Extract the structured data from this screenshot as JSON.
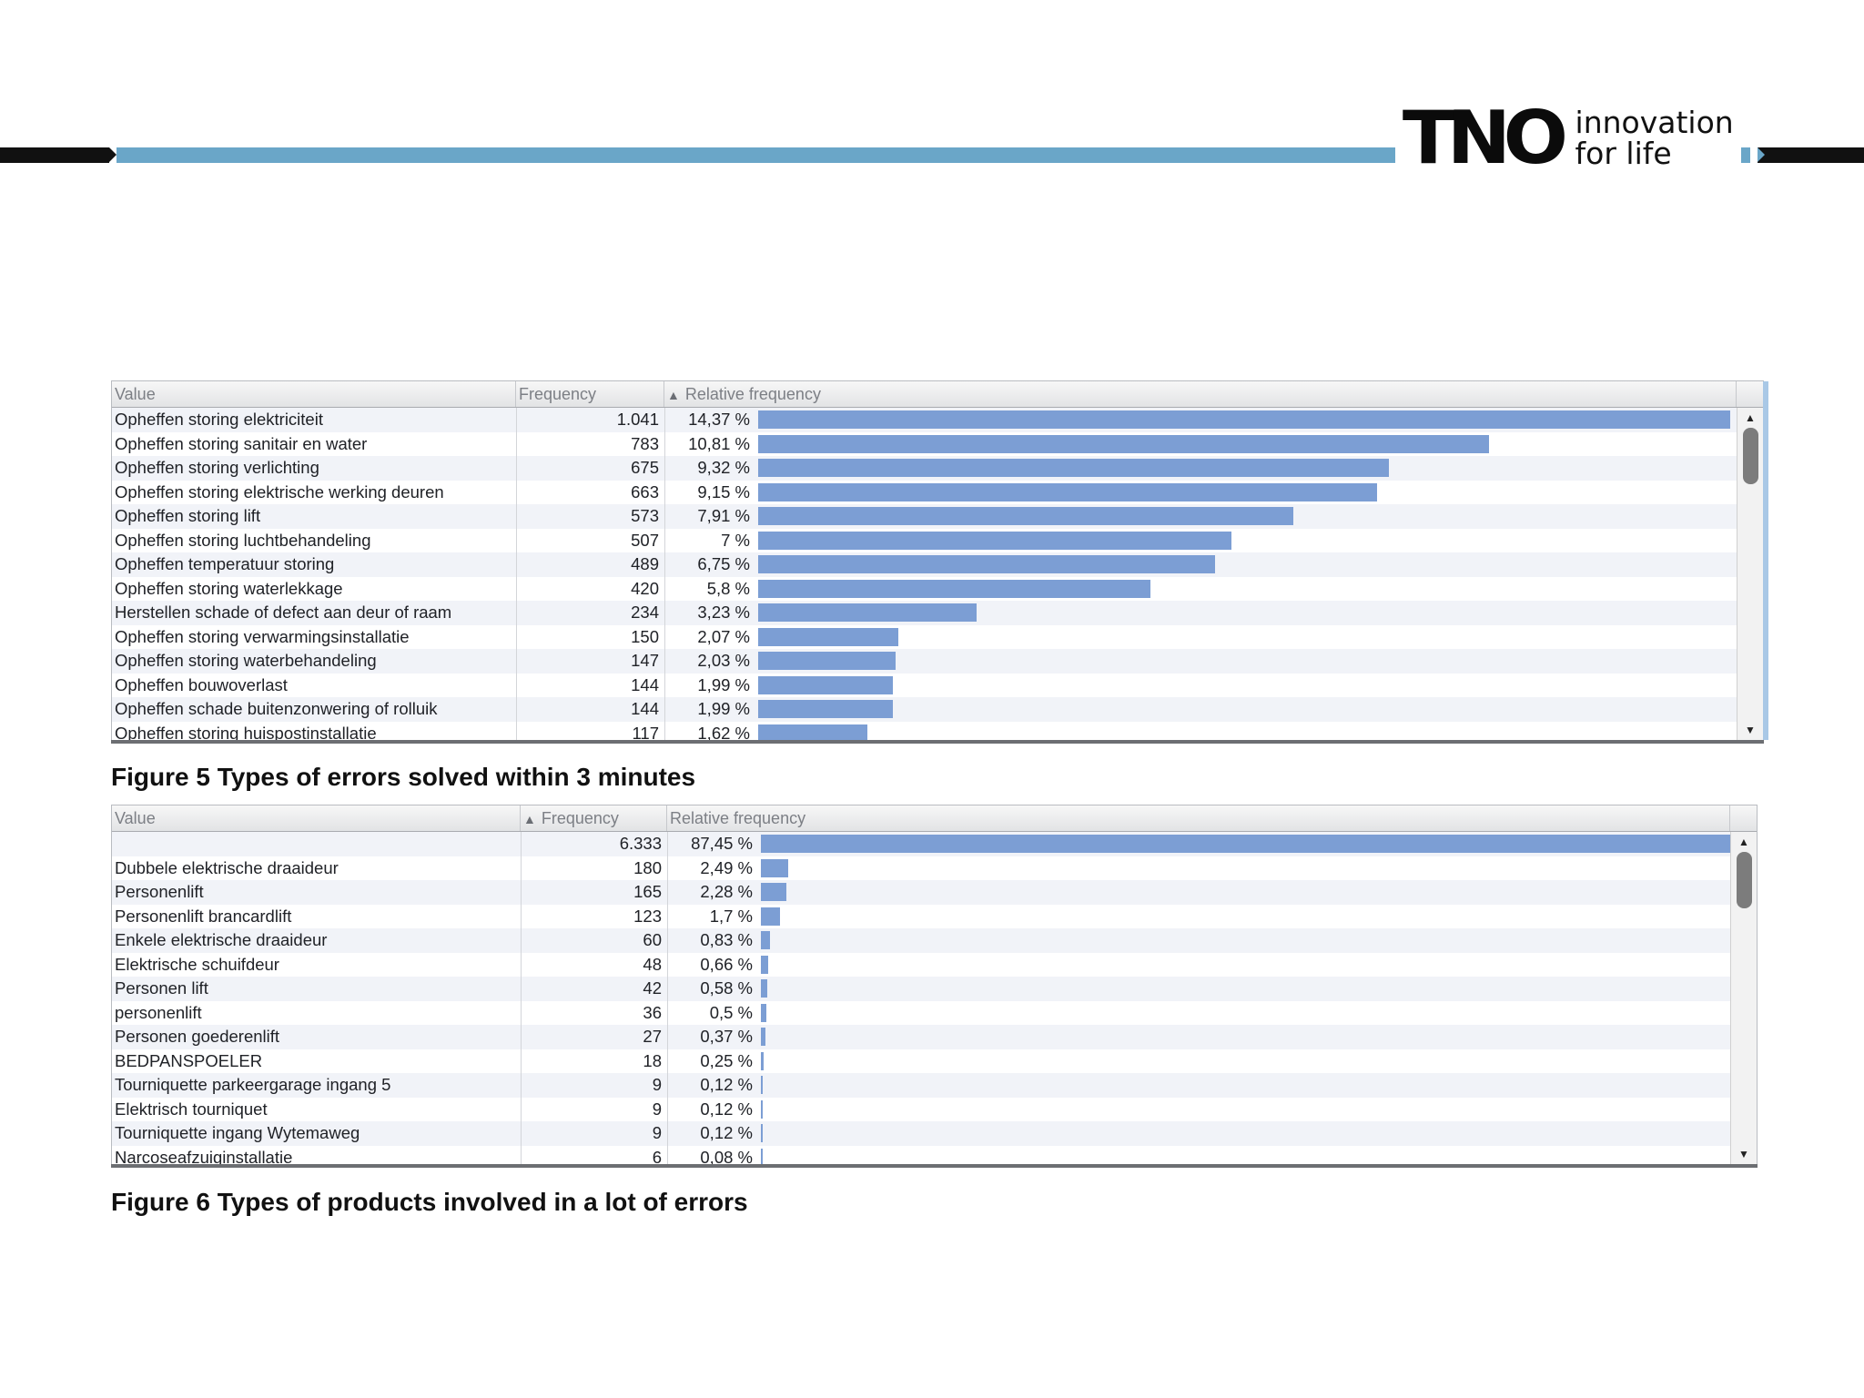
{
  "brand": {
    "mark": "TNO",
    "tagline_line1": "innovation",
    "tagline_line2": "for life"
  },
  "colors": {
    "band_blue": "#6aa6c8",
    "bar_blue": "#7c9ed4",
    "black": "#111111"
  },
  "table1": {
    "headers": {
      "value": "Value",
      "frequency": "Frequency",
      "relative": "Relative frequency",
      "sort_icon": "sort-ascending-icon"
    },
    "rows": [
      {
        "value": "Opheffen storing elektriciteit",
        "freq": "1.041",
        "rel": "14,37 %",
        "pct": 14.37
      },
      {
        "value": "Opheffen storing sanitair en water",
        "freq": "783",
        "rel": "10,81 %",
        "pct": 10.81
      },
      {
        "value": "Opheffen storing verlichting",
        "freq": "675",
        "rel": "9,32 %",
        "pct": 9.32
      },
      {
        "value": "Opheffen storing elektrische werking deuren",
        "freq": "663",
        "rel": "9,15 %",
        "pct": 9.15
      },
      {
        "value": "Opheffen storing lift",
        "freq": "573",
        "rel": "7,91 %",
        "pct": 7.91
      },
      {
        "value": "Opheffen storing luchtbehandeling",
        "freq": "507",
        "rel": "7 %",
        "pct": 7.0
      },
      {
        "value": "Opheffen temperatuur storing",
        "freq": "489",
        "rel": "6,75 %",
        "pct": 6.75
      },
      {
        "value": "Opheffen storing waterlekkage",
        "freq": "420",
        "rel": "5,8 %",
        "pct": 5.8
      },
      {
        "value": "Herstellen schade of defect aan deur of raam",
        "freq": "234",
        "rel": "3,23 %",
        "pct": 3.23
      },
      {
        "value": "Opheffen storing verwarmingsinstallatie",
        "freq": "150",
        "rel": "2,07 %",
        "pct": 2.07
      },
      {
        "value": "Opheffen storing waterbehandeling",
        "freq": "147",
        "rel": "2,03 %",
        "pct": 2.03
      },
      {
        "value": "Opheffen bouwoverlast",
        "freq": "144",
        "rel": "1,99 %",
        "pct": 1.99
      },
      {
        "value": "Opheffen schade buitenzonwering of rolluik",
        "freq": "144",
        "rel": "1,99 %",
        "pct": 1.99
      },
      {
        "value": "Opheffen storing huispostinstallatie",
        "freq": "117",
        "rel": "1,62 %",
        "pct": 1.62
      }
    ],
    "caption": "Figure 5 Types of errors solved within 3 minutes"
  },
  "table2": {
    "headers": {
      "value": "Value",
      "frequency": "Frequency",
      "relative": "Relative frequency",
      "sort_icon": "sort-ascending-icon"
    },
    "rows": [
      {
        "value": "",
        "freq": "6.333",
        "rel": "87,45 %",
        "pct": 87.45
      },
      {
        "value": "Dubbele elektrische draaideur",
        "freq": "180",
        "rel": "2,49 %",
        "pct": 2.49
      },
      {
        "value": "Personenlift",
        "freq": "165",
        "rel": "2,28 %",
        "pct": 2.28
      },
      {
        "value": "Personenlift brancardlift",
        "freq": "123",
        "rel": "1,7 %",
        "pct": 1.7
      },
      {
        "value": "Enkele elektrische draaideur",
        "freq": "60",
        "rel": "0,83 %",
        "pct": 0.83
      },
      {
        "value": "Elektrische schuifdeur",
        "freq": "48",
        "rel": "0,66 %",
        "pct": 0.66
      },
      {
        "value": "Personen lift",
        "freq": "42",
        "rel": "0,58 %",
        "pct": 0.58
      },
      {
        "value": "personenlift",
        "freq": "36",
        "rel": "0,5 %",
        "pct": 0.5
      },
      {
        "value": "Personen goederenlift",
        "freq": "27",
        "rel": "0,37 %",
        "pct": 0.37
      },
      {
        "value": "BEDPANSPOELER",
        "freq": "18",
        "rel": "0,25 %",
        "pct": 0.25
      },
      {
        "value": "Tourniquette parkeergarage ingang 5",
        "freq": "9",
        "rel": "0,12 %",
        "pct": 0.12
      },
      {
        "value": "Elektrisch tourniquet",
        "freq": "9",
        "rel": "0,12 %",
        "pct": 0.12
      },
      {
        "value": "Tourniquette ingang Wytemaweg",
        "freq": "9",
        "rel": "0,12 %",
        "pct": 0.12
      },
      {
        "value": "Narcoseafzuiginstallatie",
        "freq": "6",
        "rel": "0,08 %",
        "pct": 0.08
      }
    ],
    "caption": "Figure 6 Types of products involved in a lot of errors"
  },
  "scrollbar": {
    "up_icon": "▲",
    "down_icon": "▼"
  }
}
